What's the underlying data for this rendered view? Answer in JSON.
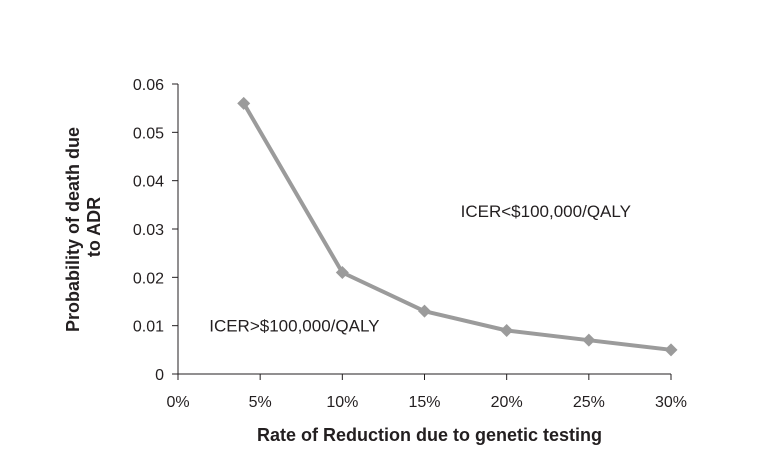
{
  "chart_data": {
    "type": "line",
    "title": "",
    "xlabel": "Rate of Reduction due to genetic testing",
    "ylabel_lines": [
      "Probability of death due",
      "to ADR"
    ],
    "x_ticks": [
      0,
      5,
      10,
      15,
      20,
      25,
      30
    ],
    "x_tick_labels": [
      "0%",
      "5%",
      "10%",
      "15%",
      "20%",
      "25%",
      "30%"
    ],
    "y_ticks": [
      0,
      0.01,
      0.02,
      0.03,
      0.04,
      0.05,
      0.06
    ],
    "y_tick_labels": [
      "0",
      "0.01",
      "0.02",
      "0.03",
      "0.04",
      "0.05",
      "0.06"
    ],
    "xlim": [
      0,
      30
    ],
    "ylim": [
      0,
      0.06
    ],
    "grid": false,
    "marker": "diamond",
    "line_color": "#9b9b9b",
    "series": [
      {
        "x": [
          4,
          10,
          15,
          20,
          25,
          30
        ],
        "values": [
          0.056,
          0.021,
          0.013,
          0.009,
          0.007,
          0.005
        ]
      }
    ],
    "annotations": [
      {
        "text": "ICER<$100,000/QALY",
        "x": 17.2,
        "y": 0.0325
      },
      {
        "text": "ICER>$100,000/QALY",
        "x": 1.9,
        "y": 0.0088
      }
    ]
  }
}
